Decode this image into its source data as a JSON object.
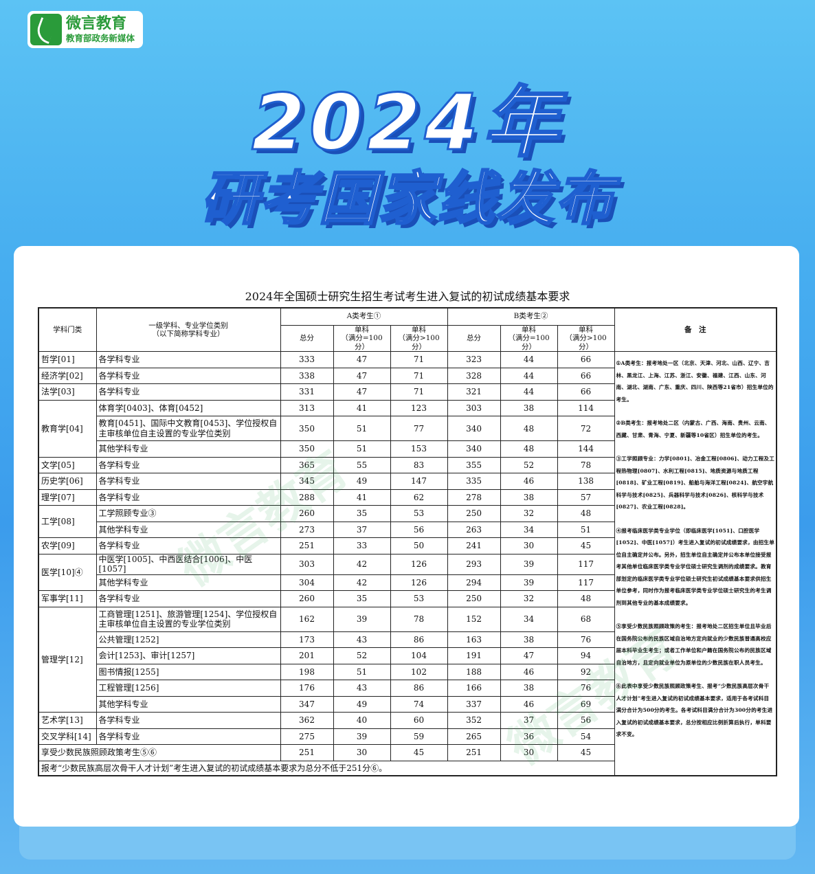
{
  "logo": {
    "name": "微言教育",
    "tagline": "教育部政务新媒体"
  },
  "banner": {
    "year_title": "2024年",
    "subtitle": "研考国家线发布"
  },
  "document": {
    "title": "2024年全国硕士研究生招生考试考生进入复试的初试成绩基本要求",
    "headers": {
      "category": "学科门类",
      "subject_line1": "一级学科、专业学位类别",
      "subject_line2": "（以下简称学科专业）",
      "group_a": "A类考生①",
      "group_b": "B类考生②",
      "total": "总分",
      "single_100_line1": "单科",
      "single_100_line2": "（满分=100分）",
      "single_gt100_line1": "单科",
      "single_gt100_line2": "（满分>100分）",
      "notes": "备　注"
    },
    "groups": [
      {
        "category": "哲学[01]",
        "rows": [
          {
            "subject": "各学科专业",
            "a": [
              "333",
              "47",
              "71"
            ],
            "b": [
              "323",
              "44",
              "66"
            ]
          }
        ]
      },
      {
        "category": "经济学[02]",
        "rows": [
          {
            "subject": "各学科专业",
            "a": [
              "338",
              "47",
              "71"
            ],
            "b": [
              "328",
              "44",
              "66"
            ]
          }
        ]
      },
      {
        "category": "法学[03]",
        "rows": [
          {
            "subject": "各学科专业",
            "a": [
              "331",
              "47",
              "71"
            ],
            "b": [
              "321",
              "44",
              "66"
            ]
          }
        ]
      },
      {
        "category": "教育学[04]",
        "rows": [
          {
            "subject": "体育学[0403]、体育[0452]",
            "a": [
              "313",
              "41",
              "123"
            ],
            "b": [
              "303",
              "38",
              "114"
            ]
          },
          {
            "subject": "教育[0451]、国际中文教育[0453]、学位授权自主审核单位自主设置的专业学位类别",
            "a": [
              "350",
              "51",
              "77"
            ],
            "b": [
              "340",
              "48",
              "72"
            ],
            "tall": true
          },
          {
            "subject": "其他学科专业",
            "a": [
              "350",
              "51",
              "153"
            ],
            "b": [
              "340",
              "48",
              "144"
            ]
          }
        ]
      },
      {
        "category": "文学[05]",
        "rows": [
          {
            "subject": "各学科专业",
            "a": [
              "365",
              "55",
              "83"
            ],
            "b": [
              "355",
              "52",
              "78"
            ]
          }
        ]
      },
      {
        "category": "历史学[06]",
        "rows": [
          {
            "subject": "各学科专业",
            "a": [
              "345",
              "49",
              "147"
            ],
            "b": [
              "335",
              "46",
              "138"
            ]
          }
        ]
      },
      {
        "category": "理学[07]",
        "rows": [
          {
            "subject": "各学科专业",
            "a": [
              "288",
              "41",
              "62"
            ],
            "b": [
              "278",
              "38",
              "57"
            ]
          }
        ]
      },
      {
        "category": "工学[08]",
        "rows": [
          {
            "subject": "工学照顾专业③",
            "a": [
              "260",
              "35",
              "53"
            ],
            "b": [
              "250",
              "32",
              "48"
            ]
          },
          {
            "subject": "其他学科专业",
            "a": [
              "273",
              "37",
              "56"
            ],
            "b": [
              "263",
              "34",
              "51"
            ]
          }
        ]
      },
      {
        "category": "农学[09]",
        "rows": [
          {
            "subject": "各学科专业",
            "a": [
              "251",
              "33",
              "50"
            ],
            "b": [
              "241",
              "30",
              "45"
            ]
          }
        ]
      },
      {
        "category": "医学[10]④",
        "rows": [
          {
            "subject": "中医学[1005]、中西医结合[1006]、中医[1057]",
            "a": [
              "303",
              "42",
              "126"
            ],
            "b": [
              "293",
              "39",
              "117"
            ]
          },
          {
            "subject": "其他学科专业",
            "a": [
              "304",
              "42",
              "126"
            ],
            "b": [
              "294",
              "39",
              "117"
            ]
          }
        ]
      },
      {
        "category": "军事学[11]",
        "rows": [
          {
            "subject": "各学科专业",
            "a": [
              "260",
              "35",
              "53"
            ],
            "b": [
              "250",
              "32",
              "48"
            ]
          }
        ]
      },
      {
        "category": "管理学[12]",
        "rows": [
          {
            "subject": "工商管理[1251]、旅游管理[1254]、学位授权自主审核单位自主设置的专业学位类别",
            "a": [
              "162",
              "39",
              "78"
            ],
            "b": [
              "152",
              "34",
              "68"
            ],
            "tall": true
          },
          {
            "subject": "公共管理[1252]",
            "a": [
              "173",
              "43",
              "86"
            ],
            "b": [
              "163",
              "38",
              "76"
            ]
          },
          {
            "subject": "会计[1253]、审计[1257]",
            "a": [
              "201",
              "52",
              "104"
            ],
            "b": [
              "191",
              "47",
              "94"
            ]
          },
          {
            "subject": "图书情报[1255]",
            "a": [
              "198",
              "51",
              "102"
            ],
            "b": [
              "188",
              "46",
              "92"
            ]
          },
          {
            "subject": "工程管理[1256]",
            "a": [
              "176",
              "43",
              "86"
            ],
            "b": [
              "166",
              "38",
              "76"
            ]
          },
          {
            "subject": "其他学科专业",
            "a": [
              "347",
              "49",
              "74"
            ],
            "b": [
              "337",
              "46",
              "69"
            ]
          }
        ]
      },
      {
        "category": "艺术学[13]",
        "rows": [
          {
            "subject": "各学科专业",
            "a": [
              "362",
              "40",
              "60"
            ],
            "b": [
              "352",
              "37",
              "56"
            ]
          }
        ]
      },
      {
        "category": "交叉学科[14]",
        "rows": [
          {
            "subject": "各学科专业",
            "a": [
              "275",
              "39",
              "59"
            ],
            "b": [
              "265",
              "36",
              "54"
            ]
          }
        ]
      }
    ],
    "minority_row": {
      "label": "享受少数民族照顾政策考生⑤⑥",
      "a": [
        "251",
        "30",
        "45"
      ],
      "b": [
        "251",
        "30",
        "45"
      ]
    },
    "footer_note": "报考“少数民族高层次骨干人才计划”考生进入复试的初试成绩基本要求为总分不低于251分⑥。",
    "notes": [
      "①A类考生：报考地处一区（北京、天津、河北、山西、辽宁、吉林、黑龙江、上海、江苏、浙江、安徽、福建、江西、山东、河南、湖北、湖南、广东、重庆、四川、陕西等21省市）招生单位的考生。",
      "②B类考生：报考地处二区（内蒙古、广西、海南、贵州、云南、西藏、甘肃、青海、宁夏、新疆等10省区）招生单位的考生。",
      "③工学照顾专业：力学[0801]、冶金工程[0806]、动力工程及工程热物理[0807]、水利工程[0815]、地质资源与地质工程[0818]、矿业工程[0819]、船舶与海洋工程[0824]、航空宇航科学与技术[0825]、兵器科学与技术[0826]、核科学与技术[0827]、农业工程[0828]。",
      "④报考临床医学类专业学位（即临床医学[1051]、口腔医学[1052]、中医[1057]）考生进入复试的初试成绩要求，由招生单位自主确定并公布。另外，招生单位自主确定并公布本单位接受报考其他单位临床医学类专业学位硕士研究生调剂的成绩要求。教育部划定的临床医学类专业学位硕士研究生初试成绩基本要求供招生单位参考，同时作为报考临床医学类专业学位硕士研究生的考生调剂到其他专业的基本成绩要求。",
      "⑤享受少数民族照顾政策的考生：报考地处二区招生单位且毕业后在国务院公布的民族区域自治地方定向就业的少数民族普通高校应届本科毕业生考生；或者工作单位和户籍在国务院公布的民族区域自治地方，且定向就业单位为原单位的少数民族在职人员考生。",
      "⑥此表中享受少数民族照顾政策考生、报考“少数民族高层次骨干人才计划”考生进入复试的初试成绩基本要求，适用于各考试科目满分合计为500分的考生。各考试科目满分合计为300分的考生进入复试的初试成绩基本要求，总分按相应比例折算后执行，单科要求不变。"
    ]
  },
  "colors": {
    "background": "#47aef0",
    "logo_green": "#2a9b3a",
    "title_outline": "#1f5fd0"
  }
}
